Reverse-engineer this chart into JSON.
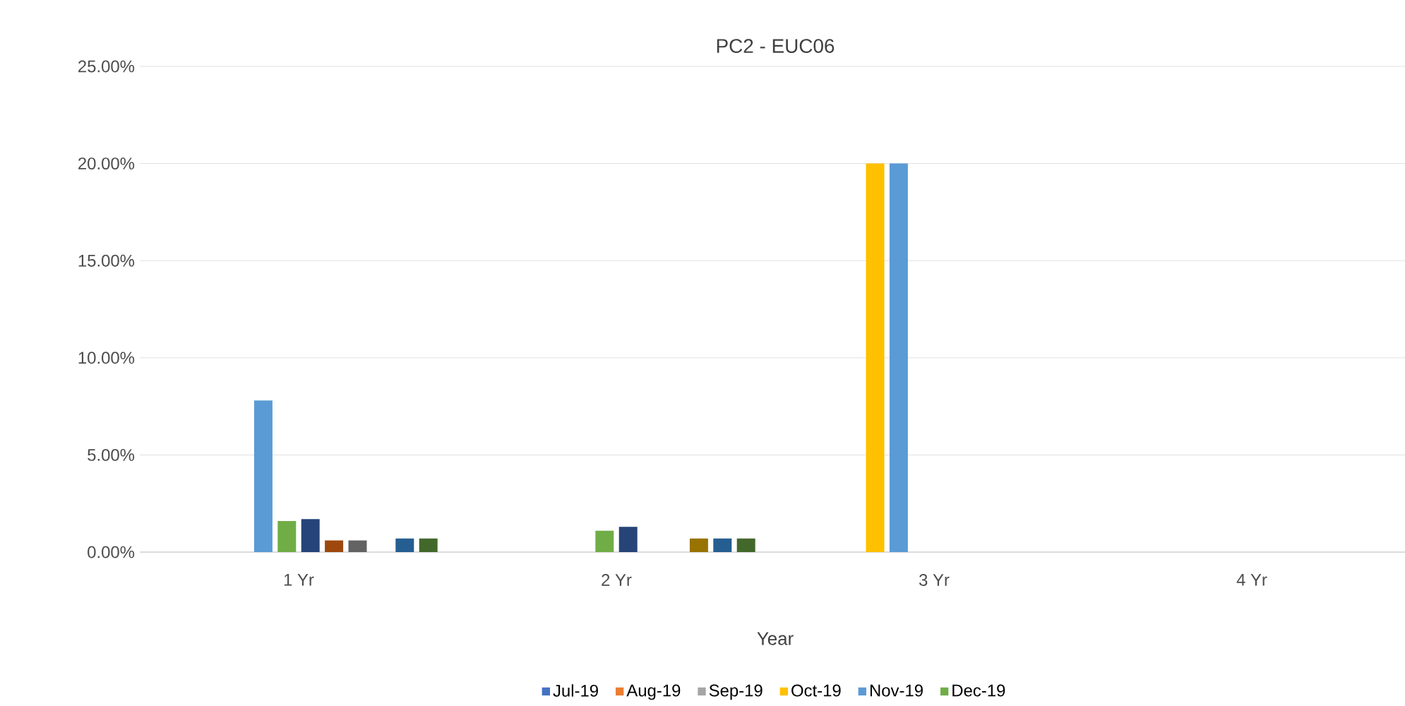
{
  "chart_data": {
    "type": "bar",
    "title": "PC2 - EUC06",
    "xlabel": "Year",
    "categories": [
      "1 Yr",
      "2 Yr",
      "3 Yr",
      "4 Yr"
    ],
    "series": [
      {
        "name": "Jul-19",
        "color": "#4472c4",
        "values": [
          0,
          0,
          0,
          0
        ]
      },
      {
        "name": "Aug-19",
        "color": "#ed7d31",
        "values": [
          0,
          0,
          0,
          0
        ]
      },
      {
        "name": "Sep-19",
        "color": "#a5a5a5",
        "values": [
          0,
          0,
          0,
          0
        ]
      },
      {
        "name": "Oct-19",
        "color": "#ffc000",
        "values": [
          0,
          0,
          20,
          0
        ]
      },
      {
        "name": "Nov-19",
        "color": "#5b9bd5",
        "values": [
          7.8,
          0,
          20,
          0
        ]
      },
      {
        "name": "Dec-19",
        "color": "#70ad47",
        "values": [
          1.6,
          1.1,
          0,
          0
        ]
      },
      {
        "color": "#264478",
        "values": [
          1.7,
          1.3,
          0,
          0
        ]
      },
      {
        "color": "#9e480e",
        "values": [
          0.6,
          0,
          0,
          0
        ]
      },
      {
        "color": "#636363",
        "values": [
          0.6,
          0,
          0,
          0
        ]
      },
      {
        "color": "#997300",
        "values": [
          0,
          0.7,
          0,
          0
        ]
      },
      {
        "color": "#255e91",
        "values": [
          0.7,
          0.7,
          0,
          0
        ]
      },
      {
        "color": "#43682b",
        "values": [
          0.7,
          0.7,
          0,
          0
        ]
      }
    ],
    "ylim": [
      0,
      25
    ],
    "yticks": [
      {
        "value": 0,
        "label": "0.00%"
      },
      {
        "value": 5,
        "label": "5.00%"
      },
      {
        "value": 10,
        "label": "10.00%"
      },
      {
        "value": 15,
        "label": "15.00%"
      },
      {
        "value": 20,
        "label": "20.00%"
      },
      {
        "value": 25,
        "label": "25.00%"
      }
    ],
    "grid": "y",
    "legend": "bottom"
  }
}
